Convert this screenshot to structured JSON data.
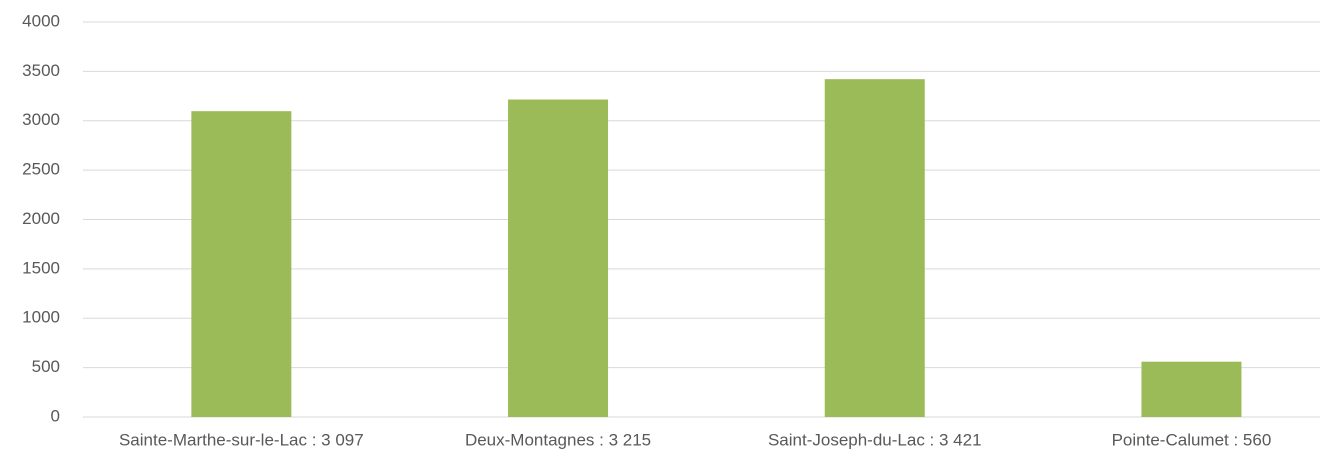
{
  "chart_data": {
    "type": "bar",
    "categories": [
      "Sainte-Marthe-sur-le-Lac : 3 097",
      "Deux-Montagnes : 3 215",
      "Saint-Joseph-du-Lac : 3 421",
      "Pointe-Calumet : 560"
    ],
    "values": [
      3097,
      3215,
      3421,
      560
    ],
    "color": "#9bbb59",
    "ylim": [
      0,
      4000
    ],
    "yticks": [
      0,
      500,
      1000,
      1500,
      2000,
      2500,
      3000,
      3500,
      4000
    ],
    "grid": true
  }
}
